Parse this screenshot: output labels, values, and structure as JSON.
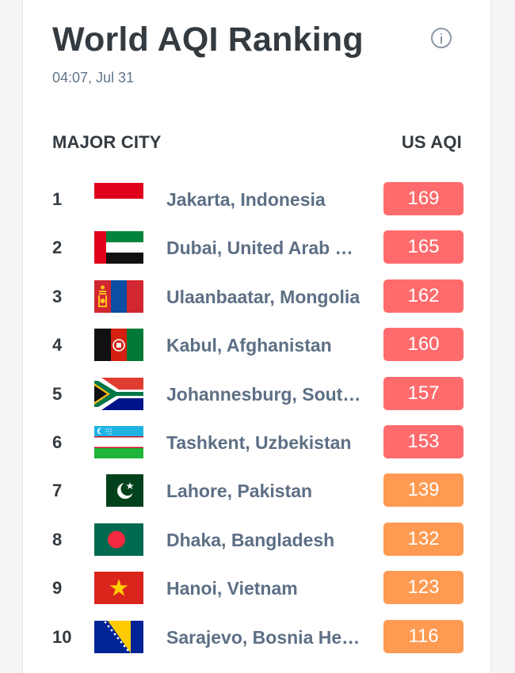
{
  "header": {
    "title": "World AQI Ranking",
    "timestamp": "04:07, Jul 31"
  },
  "columns": {
    "city": "MAJOR CITY",
    "aqi": "US AQI"
  },
  "colors": {
    "unhealthy": "#ff6b6d",
    "sensitive": "#ff9a52"
  },
  "rows": [
    {
      "rank": "1",
      "city": "Jakarta, Indonesia",
      "aqi": "169",
      "flag": "indonesia-flag-icon"
    },
    {
      "rank": "2",
      "city": "Dubai, United Arab Emirates",
      "aqi": "165",
      "flag": "uae-flag-icon"
    },
    {
      "rank": "3",
      "city": "Ulaanbaatar, Mongolia",
      "aqi": "162",
      "flag": "mongolia-flag-icon"
    },
    {
      "rank": "4",
      "city": "Kabul, Afghanistan",
      "aqi": "160",
      "flag": "afghanistan-flag-icon"
    },
    {
      "rank": "5",
      "city": "Johannesburg, South Africa",
      "aqi": "157",
      "flag": "south-africa-flag-icon"
    },
    {
      "rank": "6",
      "city": "Tashkent, Uzbekistan",
      "aqi": "153",
      "flag": "uzbekistan-flag-icon"
    },
    {
      "rank": "7",
      "city": "Lahore, Pakistan",
      "aqi": "139",
      "flag": "pakistan-flag-icon"
    },
    {
      "rank": "8",
      "city": "Dhaka, Bangladesh",
      "aqi": "132",
      "flag": "bangladesh-flag-icon"
    },
    {
      "rank": "9",
      "city": "Hanoi, Vietnam",
      "aqi": "123",
      "flag": "vietnam-flag-icon"
    },
    {
      "rank": "10",
      "city": "Sarajevo, Bosnia Herzegovina",
      "aqi": "116",
      "flag": "bosnia-flag-icon"
    }
  ]
}
